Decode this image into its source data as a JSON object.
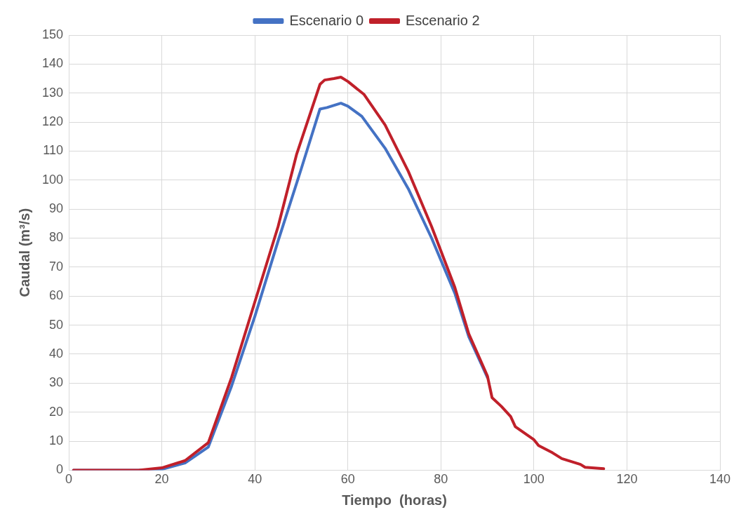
{
  "chart_data": {
    "type": "line",
    "xlabel": "Tiempo  (horas)",
    "ylabel": "Caudal (m³/s)",
    "xlim": [
      0,
      140
    ],
    "xticks": [
      0,
      20,
      40,
      60,
      80,
      100,
      120,
      140
    ],
    "ylim": [
      0,
      150
    ],
    "yticks": [
      0,
      10,
      20,
      30,
      40,
      50,
      60,
      70,
      80,
      90,
      100,
      110,
      120,
      130,
      140,
      150
    ],
    "grid": true,
    "legend": "top",
    "marker": "none",
    "line_style": "solid",
    "series": [
      {
        "name": "Escenario 0",
        "color": "#4472c4",
        "x": [
          1,
          15,
          20,
          25,
          30,
          35,
          40,
          45,
          50,
          54,
          55.5,
          58.5,
          60,
          63,
          68,
          73,
          78,
          83,
          86,
          90
        ],
        "values": [
          0,
          0,
          0.3,
          2.5,
          8,
          29,
          53,
          79,
          104,
          124.5,
          125,
          126.5,
          125.5,
          122,
          111,
          97,
          80,
          61,
          46,
          32
        ]
      },
      {
        "name": "Escenario 2",
        "color": "#c0202a",
        "x": [
          1,
          15,
          20,
          25,
          30,
          35,
          40,
          45,
          49,
          54,
          55,
          57,
          58.5,
          60,
          63.5,
          68,
          73,
          78,
          83,
          86,
          90,
          91,
          93,
          95,
          96,
          100,
          101,
          104,
          106,
          110,
          111,
          115
        ],
        "values": [
          0,
          0,
          0.8,
          3.3,
          9.5,
          32,
          58,
          84,
          109,
          133,
          134.5,
          135,
          135.5,
          134,
          129.5,
          119,
          103,
          84,
          63,
          47,
          32.5,
          25,
          22,
          18.5,
          15,
          10.5,
          8.5,
          6,
          4,
          2,
          1,
          0.5
        ]
      }
    ]
  }
}
